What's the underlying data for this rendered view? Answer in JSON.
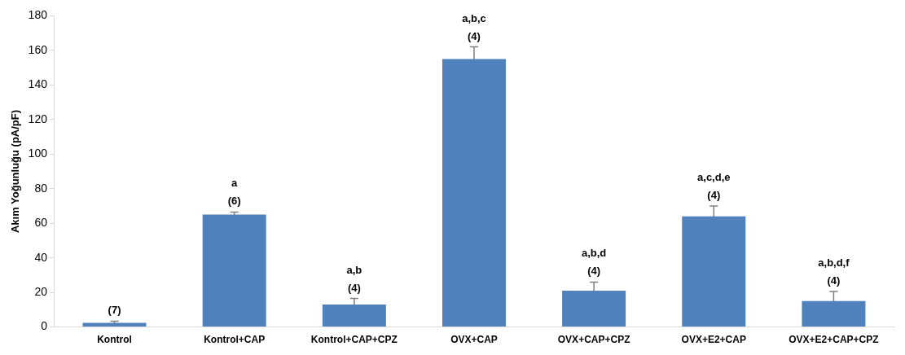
{
  "chart_data": {
    "type": "bar",
    "ylabel": "Akım Yoğunluğu (pA/pF)",
    "categories": [
      "Kontrol",
      "Kontrol+CAP",
      "Kontrol+CAP+CPZ",
      "OVX+CAP",
      "OVX+CAP+CPZ",
      "OVX+E2+CAP",
      "OVX+E2+CAP+CPZ"
    ],
    "values": [
      2.4,
      65,
      13,
      155,
      21,
      64,
      15
    ],
    "errors": [
      1,
      1.5,
      3.5,
      7,
      5,
      6,
      5.5
    ],
    "color": "#4f81bd",
    "ylim": [
      0,
      180
    ],
    "yticks": [
      0,
      20,
      40,
      60,
      80,
      100,
      120,
      140,
      160,
      180
    ],
    "grid": false,
    "legend": false,
    "annotations": [
      {
        "text": "(7)",
        "x": "Kontrol",
        "y": 3.4
      },
      {
        "text": "a",
        "x": "Kontrol+CAP",
        "y": 66.5
      },
      {
        "text": "(6)",
        "x": "Kontrol+CAP",
        "y": 66.5
      },
      {
        "text": "a,b",
        "x": "Kontrol+CAP+CPZ",
        "y": 16.5
      },
      {
        "text": "(4)",
        "x": "Kontrol+CAP+CPZ",
        "y": 16.5
      },
      {
        "text": "a,b,c",
        "x": "OVX+CAP",
        "y": 162
      },
      {
        "text": "(4)",
        "x": "OVX+CAP",
        "y": 162
      },
      {
        "text": "a,b,d",
        "x": "OVX+CAP+CPZ",
        "y": 26
      },
      {
        "text": "(4)",
        "x": "OVX+CAP+CPZ",
        "y": 26
      },
      {
        "text": "a,c,d,e",
        "x": "OVX+E2+CAP",
        "y": 70
      },
      {
        "text": "(4)",
        "x": "OVX+E2+CAP",
        "y": 70
      },
      {
        "text": "a,b,d,f",
        "x": "OVX+E2+CAP+CPZ",
        "y": 20.5
      },
      {
        "text": "(4)",
        "x": "OVX+E2+CAP+CPZ",
        "y": 20.5
      }
    ]
  }
}
